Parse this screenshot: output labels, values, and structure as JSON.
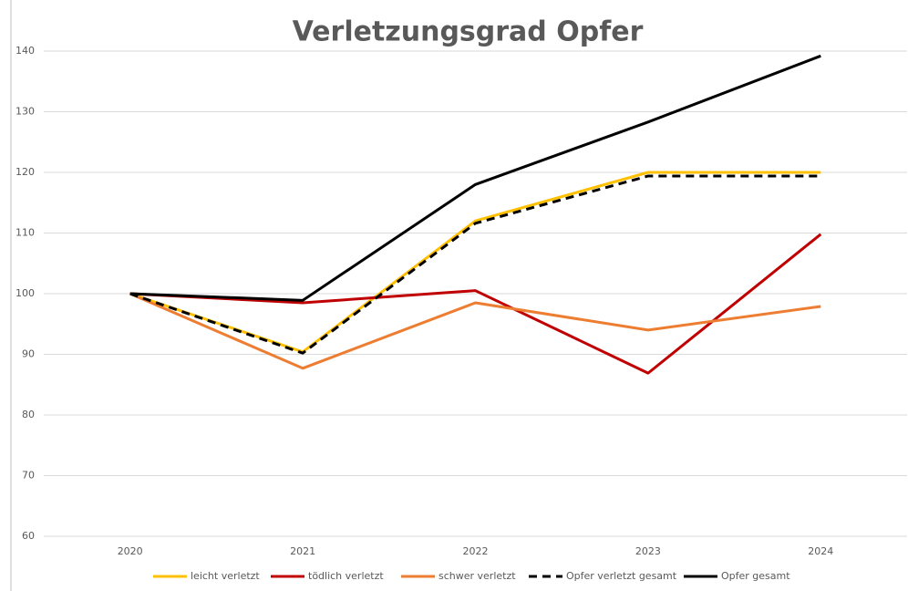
{
  "chart_data": {
    "type": "line",
    "title": "Verletzungsgrad Opfer",
    "categories": [
      "2020",
      "2021",
      "2022",
      "2023",
      "2024"
    ],
    "series": [
      {
        "name": "leicht verletzt",
        "color": "#ffc000",
        "dashed": false,
        "values": [
          100,
          90.4,
          112,
          120,
          120
        ]
      },
      {
        "name": "tödlich verletzt",
        "color": "#c00000",
        "dashed": false,
        "values": [
          100,
          98.5,
          100.5,
          86.9,
          109.8
        ]
      },
      {
        "name": "schwer verletzt",
        "color": "#ed7d31",
        "dashed": false,
        "values": [
          100,
          87.7,
          98.5,
          94,
          97.9
        ]
      },
      {
        "name": "Opfer verletzt gesamt",
        "color": "#000000",
        "dashed": true,
        "values": [
          100,
          90.2,
          111.6,
          119.4,
          119.4
        ]
      },
      {
        "name": "Opfer gesamt",
        "color": "#000000",
        "dashed": false,
        "values": [
          100,
          98.9,
          118,
          128.3,
          139.2
        ]
      }
    ],
    "ylim": [
      60,
      140
    ],
    "yticks": [
      60,
      70,
      80,
      90,
      100,
      110,
      120,
      130,
      140
    ],
    "grid": true,
    "legend": "bottom"
  }
}
